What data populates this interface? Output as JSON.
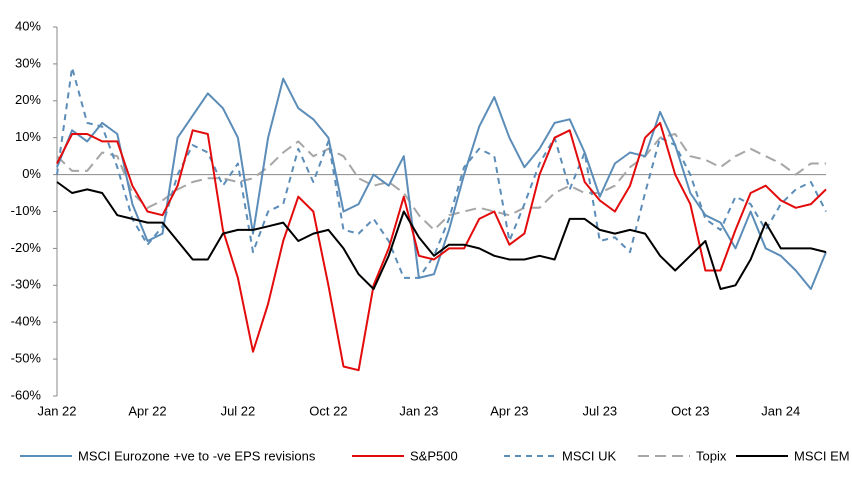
{
  "chart_data": {
    "type": "line",
    "categories": [
      "Jan 22",
      null,
      null,
      null,
      null,
      null,
      "Apr 22",
      null,
      null,
      null,
      null,
      null,
      "Jul 22",
      null,
      null,
      null,
      null,
      null,
      "Oct 22",
      null,
      null,
      null,
      null,
      null,
      "Jan 23",
      null,
      null,
      null,
      null,
      null,
      "Apr 23",
      null,
      null,
      null,
      null,
      null,
      "Jul 23",
      null,
      null,
      null,
      null,
      null,
      "Oct 23",
      null,
      null,
      null,
      null,
      null,
      "Jan 24",
      null,
      null,
      null
    ],
    "ylim": [
      -60,
      40
    ],
    "yticks": [
      {
        "value": -60,
        "label": "-60%"
      },
      {
        "value": -50,
        "label": "-50%"
      },
      {
        "value": -40,
        "label": "-40%"
      },
      {
        "value": -30,
        "label": "-30%"
      },
      {
        "value": -20,
        "label": "-20%"
      },
      {
        "value": -10,
        "label": "-10%"
      },
      {
        "value": 0,
        "label": "0%"
      },
      {
        "value": 10,
        "label": "10%"
      },
      {
        "value": 20,
        "label": "20%"
      },
      {
        "value": 30,
        "label": "30%"
      },
      {
        "value": 40,
        "label": "40%"
      }
    ],
    "grid": false,
    "legend": "bottom",
    "series": [
      {
        "name": "MSCI Eurozone +ve to -ve EPS revisions",
        "color": "#5b8db8",
        "dash": "solid",
        "values": [
          2,
          12,
          9,
          14,
          11,
          -8,
          -18,
          -16,
          10,
          16,
          22,
          18,
          10,
          -16,
          10,
          26,
          18,
          15,
          10,
          -10,
          -8,
          0,
          -3,
          5,
          -28,
          -27,
          -15,
          0,
          13,
          21,
          10,
          2,
          7,
          14,
          15,
          6,
          -6,
          3,
          6,
          5,
          17,
          8,
          -5,
          -11,
          -13,
          -20,
          -10,
          -20,
          -22,
          -26,
          -31,
          -21
        ]
      },
      {
        "name": "S&P500",
        "color": "#e30b0b",
        "dash": "solid",
        "values": [
          3,
          11,
          11,
          9,
          9,
          -3,
          -10,
          -11,
          -3,
          12,
          11,
          -15,
          -28,
          -48,
          -35,
          -18,
          -6,
          -10,
          -30,
          -52,
          -53,
          -30,
          -20,
          -6,
          -22,
          -23,
          -20,
          -20,
          -12,
          -10,
          -19,
          -16,
          0,
          10,
          12,
          -2,
          -7,
          -10,
          -3,
          10,
          14,
          0,
          -8,
          -26,
          -26,
          -15,
          -5,
          -3,
          -7,
          -9,
          -8,
          -4
        ]
      },
      {
        "name": "MSCI UK",
        "color": "#5b8db8",
        "dash": "dashed",
        "values": [
          0,
          29,
          14,
          13,
          2,
          -12,
          -19,
          -14,
          0,
          8,
          6,
          -3,
          3,
          -21,
          -10,
          -8,
          7,
          -2,
          9,
          -15,
          -16,
          -12,
          -18,
          -28,
          -28,
          -22,
          -12,
          2,
          7,
          5,
          -18,
          -8,
          3,
          10,
          -4,
          6,
          -18,
          -17,
          -21,
          -5,
          10,
          8,
          0,
          -12,
          -15,
          -6,
          -8,
          -15,
          -8,
          -4,
          -2,
          -10
        ]
      },
      {
        "name": "Topix",
        "color": "#a6a6a6",
        "dash": "long-dashed",
        "values": [
          5,
          1,
          1,
          6,
          5,
          -5,
          -9,
          -7,
          -4,
          -2,
          -1,
          -1,
          -2,
          -1,
          2,
          6,
          9,
          5,
          7,
          5,
          -1,
          -3,
          -2,
          -5,
          -11,
          -15,
          -11,
          -10,
          -9,
          -10,
          -11,
          -9,
          -9,
          -5,
          -3,
          -5,
          -5,
          -3,
          2,
          5,
          10,
          11,
          5,
          4,
          2,
          5,
          7,
          5,
          3,
          0,
          3,
          3
        ]
      },
      {
        "name": "MSCI EM",
        "color": "#000000",
        "dash": "solid",
        "values": [
          -2,
          -5,
          -4,
          -5,
          -11,
          -12,
          -13,
          -13,
          -18,
          -23,
          -23,
          -16,
          -15,
          -15,
          -14,
          -13,
          -18,
          -16,
          -15,
          -20,
          -27,
          -31,
          -22,
          -10,
          -17,
          -22,
          -19,
          -19,
          -20,
          -22,
          -23,
          -23,
          -22,
          -23,
          -12,
          -12,
          -15,
          -16,
          -15,
          -16,
          -22,
          -26,
          -22,
          -18,
          -31,
          -30,
          -23,
          -13,
          -20,
          -20,
          -20,
          -21
        ]
      }
    ]
  }
}
